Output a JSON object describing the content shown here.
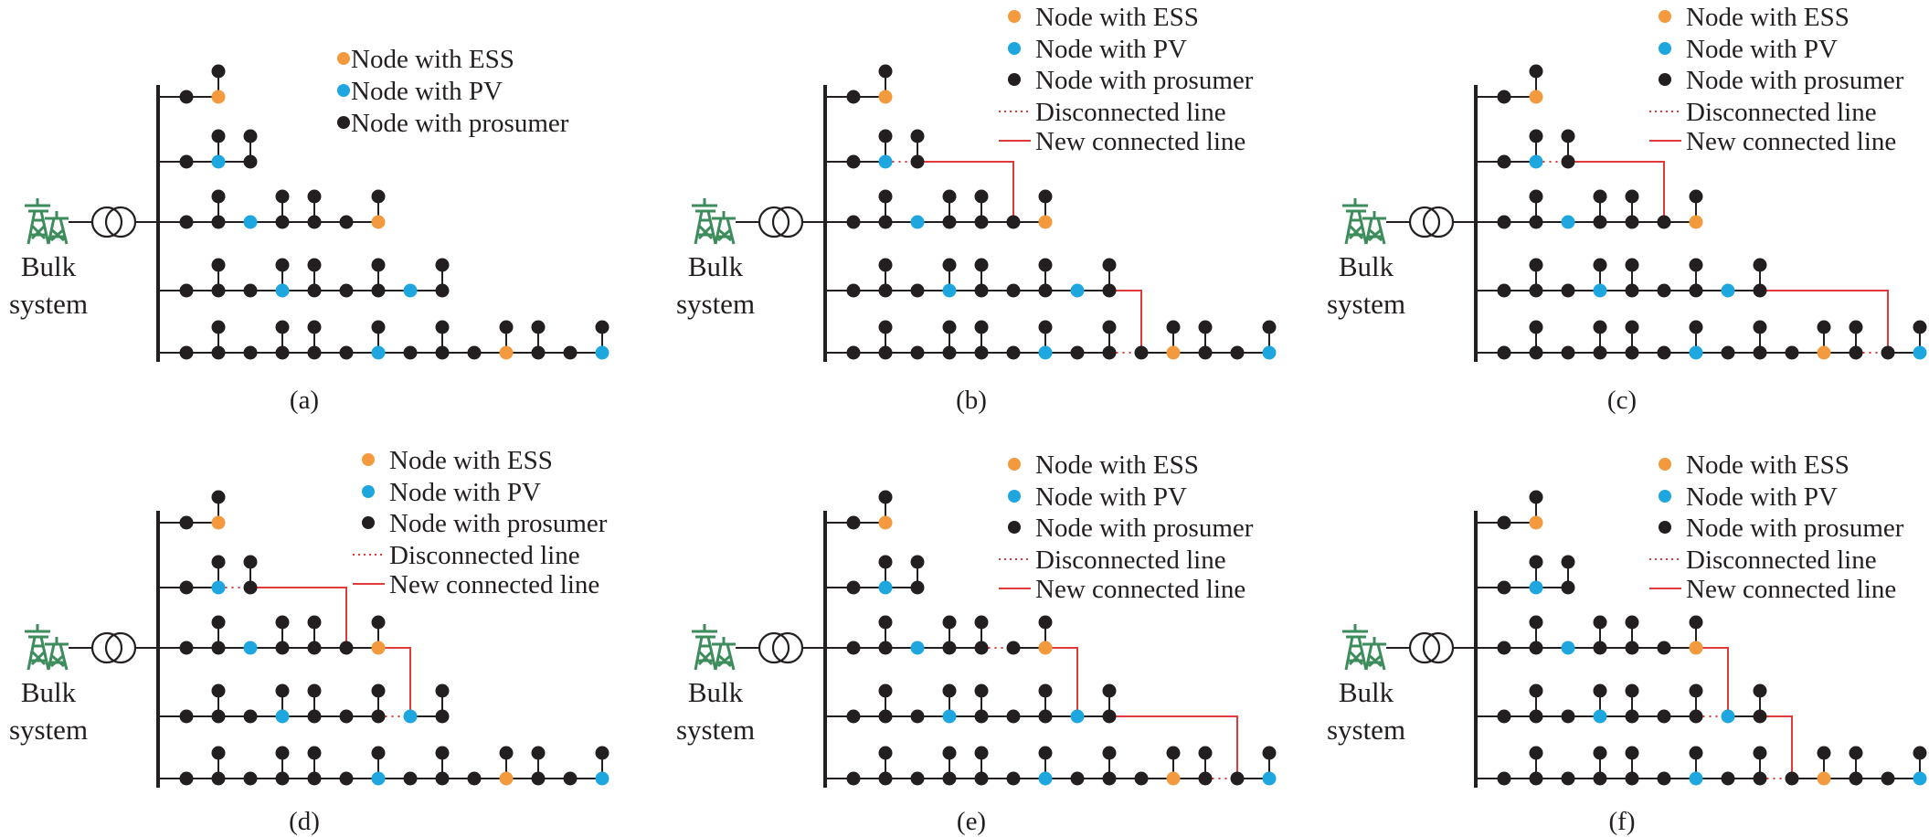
{
  "colors": {
    "ess": "#f39a3e",
    "pv": "#1ea6df",
    "prosumer": "#231f20",
    "line": "#231f20",
    "new_line": "#e03a3a",
    "disconnected_line": "#e03a3a",
    "tower": "#3c8c5c"
  },
  "bulk_label": [
    "Bulk",
    "system"
  ],
  "legend_full": [
    {
      "kind": "ess",
      "label": "Node with ESS"
    },
    {
      "kind": "pv",
      "label": "Node with PV"
    },
    {
      "kind": "prosumer",
      "label": "Node with prosumer"
    },
    {
      "kind": "disconnected",
      "label": "Disconnected line"
    },
    {
      "kind": "new",
      "label": "New connected line"
    }
  ],
  "legend_short": [
    {
      "kind": "ess",
      "label": "Node with ESS"
    },
    {
      "kind": "pv",
      "label": "Node with PV"
    },
    {
      "kind": "prosumer",
      "label": "Node with prosumer"
    }
  ],
  "base_feeders": [
    {
      "nodes": [
        "prosumer",
        "ess"
      ],
      "stubs": [
        1
      ]
    },
    {
      "nodes": [
        "prosumer",
        "pv",
        "prosumer"
      ],
      "stubs": [
        1,
        2
      ]
    },
    {
      "nodes": [
        "prosumer",
        "prosumer",
        "pv",
        "prosumer",
        "prosumer",
        "prosumer",
        "ess"
      ],
      "stubs": [
        1,
        3,
        4,
        6
      ]
    },
    {
      "nodes": [
        "prosumer",
        "prosumer",
        "prosumer",
        "pv",
        "prosumer",
        "prosumer",
        "prosumer",
        "pv",
        "prosumer"
      ],
      "stubs": [
        1,
        3,
        4,
        6,
        8
      ]
    },
    {
      "nodes": [
        "prosumer",
        "prosumer",
        "prosumer",
        "prosumer",
        "prosumer",
        "prosumer",
        "pv",
        "prosumer",
        "prosumer",
        "prosumer",
        "ess",
        "prosumer",
        "prosumer",
        "pv"
      ],
      "stubs": [
        1,
        3,
        4,
        6,
        8,
        10,
        11,
        13
      ]
    }
  ],
  "panels": [
    {
      "id": "a",
      "caption": "(a)",
      "legend": "short",
      "disconnected": [],
      "new_lines": []
    },
    {
      "id": "b",
      "caption": "(b)",
      "legend": "full",
      "disconnected": [
        {
          "feeder": 2,
          "after_node": 1
        },
        {
          "feeder": 5,
          "after_node": 8
        }
      ],
      "new_lines": [
        {
          "from": [
            2,
            2
          ],
          "to": [
            3,
            5
          ]
        },
        {
          "from": [
            4,
            8
          ],
          "to": [
            5,
            9
          ]
        }
      ]
    },
    {
      "id": "c",
      "caption": "(c)",
      "legend": "full",
      "disconnected": [
        {
          "feeder": 2,
          "after_node": 1
        },
        {
          "feeder": 5,
          "after_node": 11
        }
      ],
      "new_lines": [
        {
          "from": [
            2,
            2
          ],
          "to": [
            3,
            5
          ]
        },
        {
          "from": [
            4,
            8
          ],
          "to": [
            5,
            12
          ]
        }
      ]
    },
    {
      "id": "d",
      "caption": "(d)",
      "legend": "full",
      "disconnected": [
        {
          "feeder": 2,
          "after_node": 1
        },
        {
          "feeder": 4,
          "after_node": 6
        }
      ],
      "new_lines": [
        {
          "from": [
            2,
            2
          ],
          "to": [
            3,
            5
          ]
        },
        {
          "from": [
            3,
            6
          ],
          "to": [
            4,
            7
          ]
        }
      ]
    },
    {
      "id": "e",
      "caption": "(e)",
      "legend": "full",
      "disconnected": [
        {
          "feeder": 3,
          "after_node": 4
        },
        {
          "feeder": 5,
          "after_node": 11
        }
      ],
      "new_lines": [
        {
          "from": [
            3,
            6
          ],
          "to": [
            4,
            7
          ]
        },
        {
          "from": [
            4,
            8
          ],
          "to": [
            5,
            12
          ]
        }
      ]
    },
    {
      "id": "f",
      "caption": "(f)",
      "legend": "full",
      "disconnected": [
        {
          "feeder": 4,
          "after_node": 6
        },
        {
          "feeder": 5,
          "after_node": 8
        }
      ],
      "new_lines": [
        {
          "from": [
            3,
            6
          ],
          "to": [
            4,
            7
          ]
        },
        {
          "from": [
            4,
            8
          ],
          "to": [
            5,
            9
          ]
        }
      ]
    }
  ]
}
